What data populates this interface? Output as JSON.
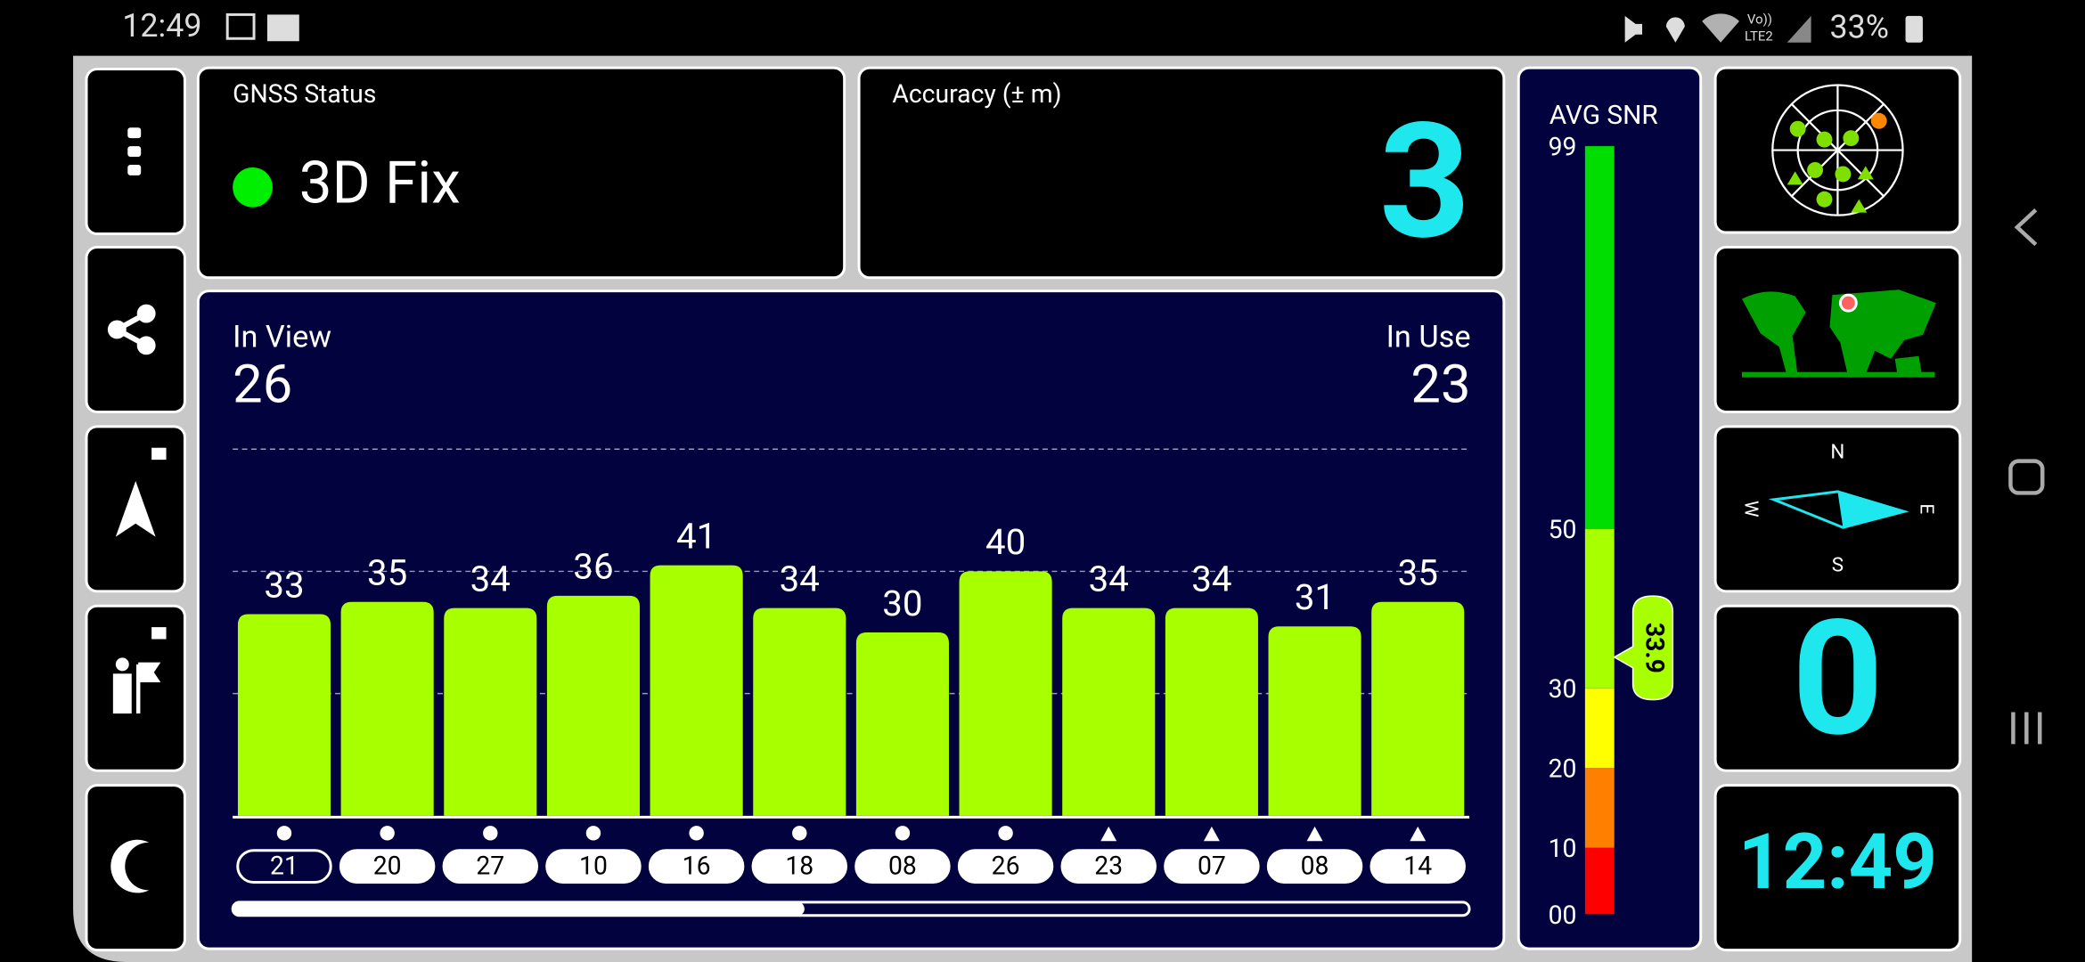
{
  "status_bar": {
    "time": "12:49",
    "network_top": "Vo))",
    "network_bottom": "LTE2",
    "battery": "33%"
  },
  "gnss_status": {
    "title": "GNSS Status",
    "fix": "3D Fix"
  },
  "accuracy": {
    "title": "Accuracy (± m)",
    "value": "3"
  },
  "in_view": {
    "label": "In View",
    "value": "26"
  },
  "in_use": {
    "label": "In Use",
    "value": "23"
  },
  "chart_data": {
    "type": "bar",
    "categories": [
      "21",
      "20",
      "27",
      "10",
      "16",
      "18",
      "08",
      "26",
      "23",
      "07",
      "08",
      "14"
    ],
    "values": [
      33,
      35,
      34,
      36,
      41,
      34,
      30,
      40,
      34,
      34,
      31,
      35
    ],
    "markers": [
      "circle",
      "circle",
      "circle",
      "circle",
      "circle",
      "circle",
      "circle",
      "circle",
      "triangle",
      "triangle",
      "triangle",
      "triangle"
    ],
    "color": "#a8ff00",
    "ylim": [
      0,
      60
    ],
    "yticks": [
      20,
      40,
      60
    ],
    "grid": true,
    "highlight_index": 0
  },
  "snr_scale": {
    "title": "AVG SNR",
    "value": 33.9,
    "ticks": [
      {
        "value": 0,
        "label": "00"
      },
      10,
      20,
      30,
      50,
      99
    ],
    "bands": [
      {
        "from": 0,
        "to": 10,
        "color": "#ff0000"
      },
      {
        "from": 10,
        "to": 20,
        "color": "#ff8000"
      },
      {
        "from": 20,
        "to": 30,
        "color": "#ffff00"
      },
      {
        "from": 30,
        "to": 50,
        "color": "#a8ff00"
      },
      {
        "from": 50,
        "to": 99,
        "color": "#00dd00"
      }
    ]
  },
  "compass": {
    "north": "N",
    "south": "S",
    "west": "W",
    "east": "E"
  },
  "speed": "0",
  "clock": "12:49"
}
